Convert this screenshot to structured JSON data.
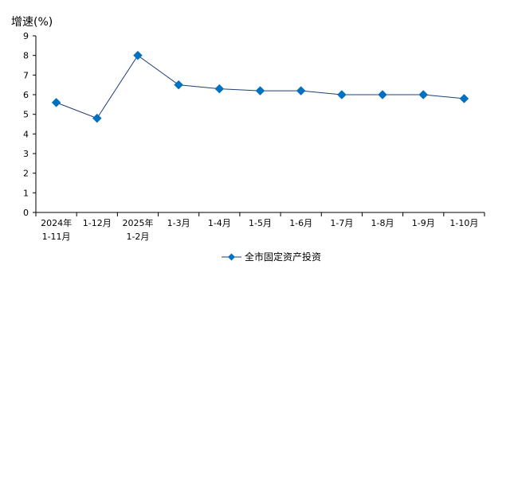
{
  "chart_data": {
    "type": "line",
    "ylabel": "增速(%)",
    "ylim": [
      0,
      9
    ],
    "yticks": [
      0,
      1,
      2,
      3,
      4,
      5,
      6,
      7,
      8,
      9
    ],
    "categories": [
      [
        "2024年",
        "1-11月"
      ],
      [
        "1-12月"
      ],
      [
        "2025年",
        "1-2月"
      ],
      [
        "1-3月"
      ],
      [
        "1-4月"
      ],
      [
        "1-5月"
      ],
      [
        "1-6月"
      ],
      [
        "1-7月"
      ],
      [
        "1-8月"
      ],
      [
        "1-9月"
      ],
      [
        "1-10月"
      ]
    ],
    "series": [
      {
        "name": "全市固定资产投资",
        "values": [
          5.6,
          4.8,
          8.0,
          6.5,
          6.3,
          6.2,
          6.2,
          6.0,
          6.0,
          6.0,
          5.8
        ],
        "color": "#0070C0",
        "line_color": "#1F3F73",
        "marker": "diamond"
      }
    ],
    "grid": false,
    "legend": "bottom"
  }
}
